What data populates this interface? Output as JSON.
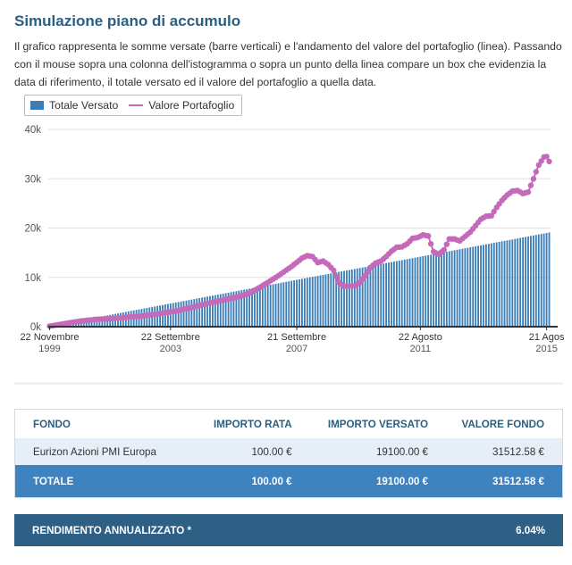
{
  "page": {
    "title": "Simulazione piano di accumulo",
    "description": "Il grafico rappresenta le somme versate (barre verticali) e l'andamento del valore del portafoglio (linea). Passando con il mouse sopra una colonna dell'istogramma o sopra un punto della linea compare un box che evidenzia la data di riferimento, il totale versato ed il valore del portafoglio a quella data."
  },
  "chart_data": {
    "type": "bar+line",
    "title": "",
    "legend": [
      "Totale Versato",
      "Valore Portafoglio"
    ],
    "y_ticks": [
      "0k",
      "10k",
      "20k",
      "30k",
      "40k"
    ],
    "ylim": [
      0,
      40000
    ],
    "x_ticks": [
      {
        "date": "22 Novembre",
        "year": "1999"
      },
      {
        "date": "22 Settembre",
        "year": "2003"
      },
      {
        "date": "21 Settembre",
        "year": "2007"
      },
      {
        "date": "22 Agosto",
        "year": "2011"
      },
      {
        "date": "21 Agos",
        "year": "2015"
      }
    ],
    "x_tick_months": [
      0,
      46,
      94,
      141,
      189
    ],
    "bar_series": {
      "name": "Totale Versato",
      "monthly_amount": 100,
      "months": 191,
      "final": 19100
    },
    "line_series": {
      "name": "Valore Portafoglio",
      "points": [
        [
          0,
          100
        ],
        [
          6,
          650
        ],
        [
          12,
          1150
        ],
        [
          18,
          1500
        ],
        [
          24,
          1650
        ],
        [
          30,
          1950
        ],
        [
          36,
          2200
        ],
        [
          42,
          2650
        ],
        [
          48,
          3150
        ],
        [
          54,
          3900
        ],
        [
          60,
          4700
        ],
        [
          66,
          5400
        ],
        [
          72,
          6100
        ],
        [
          76,
          6800
        ],
        [
          80,
          8000
        ],
        [
          84,
          9300
        ],
        [
          88,
          10700
        ],
        [
          92,
          12200
        ],
        [
          96,
          13900
        ],
        [
          98,
          14400
        ],
        [
          100,
          14200
        ],
        [
          102,
          13000
        ],
        [
          104,
          13300
        ],
        [
          106,
          12600
        ],
        [
          108,
          11400
        ],
        [
          110,
          9000
        ],
        [
          112,
          8200
        ],
        [
          116,
          8300
        ],
        [
          118,
          9000
        ],
        [
          120,
          10300
        ],
        [
          122,
          12000
        ],
        [
          124,
          12900
        ],
        [
          126,
          13300
        ],
        [
          128,
          14200
        ],
        [
          130,
          15300
        ],
        [
          132,
          16100
        ],
        [
          134,
          16200
        ],
        [
          136,
          16800
        ],
        [
          138,
          17900
        ],
        [
          140,
          18100
        ],
        [
          142,
          18600
        ],
        [
          144,
          18400
        ],
        [
          146,
          15200
        ],
        [
          148,
          14700
        ],
        [
          150,
          15600
        ],
        [
          152,
          17800
        ],
        [
          154,
          17800
        ],
        [
          156,
          17400
        ],
        [
          158,
          18300
        ],
        [
          160,
          19200
        ],
        [
          162,
          20500
        ],
        [
          164,
          21800
        ],
        [
          166,
          22400
        ],
        [
          168,
          22500
        ],
        [
          170,
          24200
        ],
        [
          172,
          25600
        ],
        [
          174,
          26700
        ],
        [
          176,
          27500
        ],
        [
          178,
          27600
        ],
        [
          180,
          27000
        ],
        [
          182,
          27300
        ],
        [
          184,
          30000
        ],
        [
          186,
          32800
        ],
        [
          188,
          34400
        ],
        [
          189,
          34500
        ],
        [
          190,
          33500
        ],
        [
          191,
          31500
        ]
      ]
    }
  },
  "table": {
    "headers": [
      "FONDO",
      "IMPORTO RATA",
      "IMPORTO VERSATO",
      "VALORE FONDO"
    ],
    "row": [
      "Eurizon Azioni PMI Europa",
      "100.00 €",
      "19100.00 €",
      "31512.58 €"
    ],
    "total": [
      "TOTALE",
      "100.00 €",
      "19100.00 €",
      "31512.58 €"
    ]
  },
  "rendimento": {
    "label": "RENDIMENTO ANNUALIZZATO *",
    "value": "6.04%"
  },
  "colors": {
    "title": "#2a5f7f",
    "bar": "#3b7db5",
    "line": "#c56aba",
    "total_row": "#3f82c0",
    "rend_bar": "#2e5f85"
  }
}
